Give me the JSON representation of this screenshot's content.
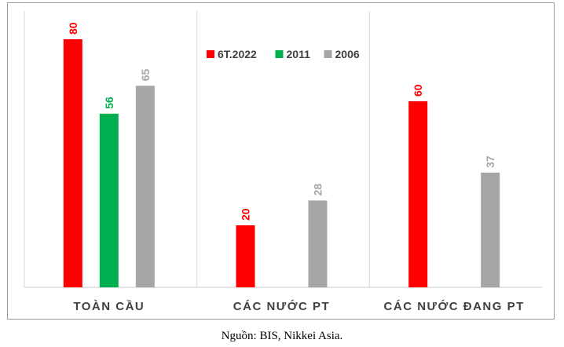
{
  "chart_data": {
    "type": "bar",
    "title": "",
    "xlabel": "",
    "ylabel": "",
    "ylim": [
      0,
      85
    ],
    "grid": false,
    "legend_position": "top-center",
    "categories": [
      "TOÀN CẦU",
      "CÁC NƯỚC PT",
      "CÁC NƯỚC ĐANG PT"
    ],
    "series": [
      {
        "name": "6T.2022",
        "color": "#ff0000",
        "values": [
          80,
          20,
          60
        ]
      },
      {
        "name": "2011",
        "color": "#00b050",
        "values": [
          56,
          null,
          null
        ]
      },
      {
        "name": "2006",
        "color": "#a6a6a6",
        "values": [
          65,
          28,
          37
        ]
      }
    ]
  },
  "source": "Nguồn: BIS, Nikkei Asia."
}
